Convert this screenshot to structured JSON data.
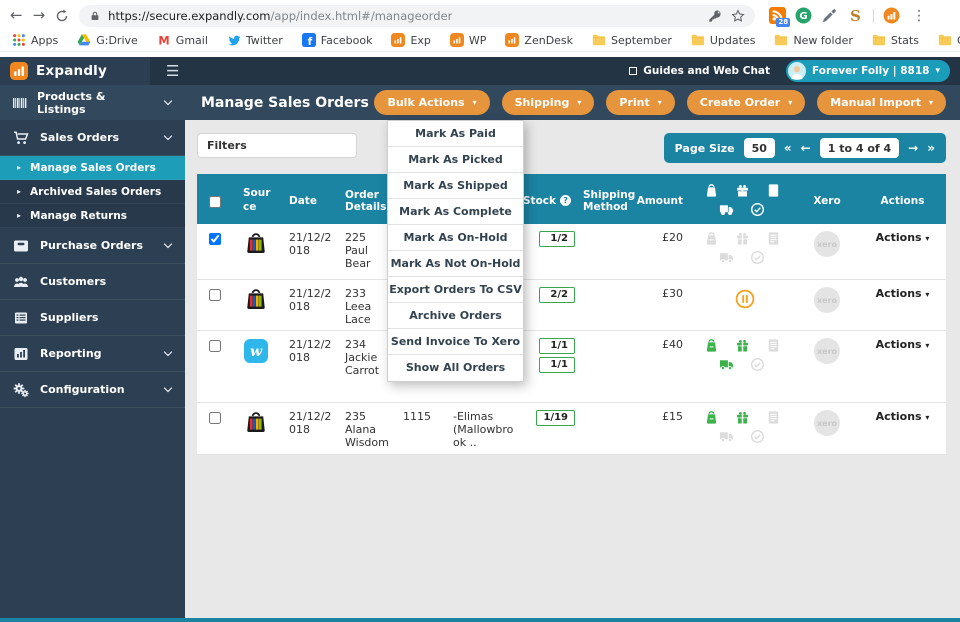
{
  "browser": {
    "url_host": "https://secure.expandly.com",
    "url_path": "/app/index.html#/manageorder",
    "extensions": [
      {
        "icon": "rss",
        "badge": "28"
      },
      {
        "icon": "grammarly"
      },
      {
        "icon": "eyedropper"
      },
      {
        "icon": "s-tool"
      },
      {
        "icon": "expandly-ext"
      }
    ],
    "bookmarks": [
      {
        "label": "Apps",
        "icon": "apps-grid"
      },
      {
        "label": "G:Drive",
        "icon": "drive"
      },
      {
        "label": "Gmail",
        "icon": "gmail"
      },
      {
        "label": "Twitter",
        "icon": "twitter"
      },
      {
        "label": "Facebook",
        "icon": "facebook"
      },
      {
        "label": "Exp",
        "icon": "orange-app"
      },
      {
        "label": "WP",
        "icon": "orange-app"
      },
      {
        "label": "ZenDesk",
        "icon": "orange-app"
      },
      {
        "label": "September",
        "icon": "folder"
      },
      {
        "label": "Updates",
        "icon": "folder"
      },
      {
        "label": "New folder",
        "icon": "folder"
      },
      {
        "label": "Stats",
        "icon": "folder"
      },
      {
        "label": "Guest blog target list",
        "icon": "folder"
      }
    ],
    "bookmarks_overflow": "»"
  },
  "topbar": {
    "brand": "Expandly",
    "guides_label": "Guides and Web Chat",
    "user_label": "Forever Folly | 8818"
  },
  "nav_strip": {
    "section_label": "Products & Listings",
    "page_title": "Manage Sales Orders",
    "buttons": [
      "Bulk Actions",
      "Shipping",
      "Print",
      "Create Order",
      "Manual Import"
    ]
  },
  "sidebar": [
    {
      "label": "Sales Orders",
      "icon": "cart",
      "chevron": true
    },
    {
      "label": "Manage Sales Orders",
      "child": true,
      "active": true
    },
    {
      "label": "Archived Sales Orders",
      "child": true
    },
    {
      "label": "Manage Returns",
      "child": true
    },
    {
      "label": "Purchase Orders",
      "icon": "purchase-box",
      "chevron": true
    },
    {
      "label": "Customers",
      "icon": "customers"
    },
    {
      "label": "Suppliers",
      "icon": "suppliers"
    },
    {
      "label": "Reporting",
      "icon": "reporting",
      "chevron": true
    },
    {
      "label": "Configuration",
      "icon": "configuration",
      "chevron": true
    }
  ],
  "filters": {
    "label": "Filters"
  },
  "pagination": {
    "page_size_label": "Page Size",
    "page_size_value": "50",
    "first": "«",
    "prev": "←",
    "range": "1 to 4 of 4",
    "next": "→",
    "last": "»"
  },
  "bulk_menu": [
    "Mark As Paid",
    "Mark As Picked",
    "Mark As Shipped",
    "Mark As Complete",
    "Mark As On-Hold",
    "Mark As Not On-Hold",
    "Export Orders To CSV",
    "Archive Orders",
    "Send Invoice To Xero",
    "Show All Orders"
  ],
  "table": {
    "headers": {
      "source": "Source",
      "date": "Date",
      "order_details": "Order Details",
      "stock": "Stock",
      "stock_help": "?",
      "shipping_method": "Shipping Method",
      "amount": "Amount",
      "xero": "Xero",
      "actions": "Actions"
    },
    "status_header_icons": [
      "paid-bag",
      "picked-gift",
      "invoice-doc",
      "shipped-truck",
      "complete-check"
    ],
    "rows": [
      {
        "checked": true,
        "source": "ebay",
        "date": "21/12/2018",
        "order_id": "225",
        "customer": "Paul Bear",
        "sku": "",
        "item": "",
        "stock": [
          "1/2"
        ],
        "shipping_method": "",
        "amount": "£20",
        "on_hold": false,
        "status": {
          "paid": false,
          "picked": false,
          "invoice": false,
          "shipped": false,
          "complete": false
        },
        "xero_label": "xero",
        "actions_label": "Actions"
      },
      {
        "checked": false,
        "source": "ebay",
        "date": "21/12/2018",
        "order_id": "233",
        "customer": "Leea Lace",
        "sku": "",
        "item": "",
        "stock": [
          "2/2"
        ],
        "shipping_method": "",
        "amount": "£30",
        "on_hold": true,
        "status": null,
        "xero_label": "xero",
        "actions_label": "Actions"
      },
      {
        "checked": false,
        "source": "wish",
        "date": "21/12/2018",
        "order_id": "234",
        "customer": "Jackie Carrot",
        "sku": "",
        "item": "",
        "stock": [
          "1/1",
          "1/1"
        ],
        "shipping_method": "",
        "amount": "£40",
        "on_hold": false,
        "status": {
          "paid": true,
          "picked": true,
          "invoice": false,
          "shipped": true,
          "complete": false
        },
        "xero_label": "xero",
        "actions_label": "Actions"
      },
      {
        "checked": false,
        "source": "ebay",
        "date": "21/12/2018",
        "order_id": "235",
        "customer": "Alana Wisdom",
        "sku": "1115",
        "item": "-Elimas (Mallowbrook ..",
        "stock": [
          "1/19"
        ],
        "shipping_method": "",
        "amount": "£15",
        "on_hold": false,
        "status": {
          "paid": true,
          "picked": true,
          "invoice": false,
          "shipped": false,
          "complete": false
        },
        "xero_label": "xero",
        "actions_label": "Actions"
      }
    ]
  }
}
